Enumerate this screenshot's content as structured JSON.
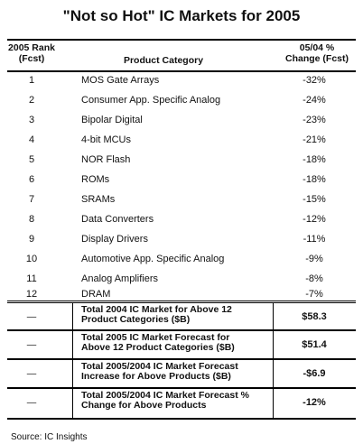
{
  "title": "\"Not so Hot\" IC Markets for 2005",
  "header": {
    "rank_line1": "2005 Rank",
    "rank_line2": "(Fcst)",
    "category": "Product Category",
    "change_line1": "05/04 %",
    "change_line2": "Change (Fcst)"
  },
  "rows": [
    {
      "rank": "1",
      "category": "MOS Gate Arrays",
      "change": "-32%"
    },
    {
      "rank": "2",
      "category": "Consumer App. Specific Analog",
      "change": "-24%"
    },
    {
      "rank": "3",
      "category": "Bipolar Digital",
      "change": "-23%"
    },
    {
      "rank": "4",
      "category": "4-bit MCUs",
      "change": "-21%"
    },
    {
      "rank": "5",
      "category": "NOR Flash",
      "change": "-18%"
    },
    {
      "rank": "6",
      "category": "ROMs",
      "change": "-18%"
    },
    {
      "rank": "7",
      "category": "SRAMs",
      "change": "-15%"
    },
    {
      "rank": "8",
      "category": "Data Converters",
      "change": "-12%"
    },
    {
      "rank": "9",
      "category": "Display Drivers",
      "change": "-11%"
    },
    {
      "rank": "10",
      "category": "Automotive App. Specific Analog",
      "change": "-9%"
    },
    {
      "rank": "11",
      "category": "Analog Amplifiers",
      "change": "-8%"
    },
    {
      "rank": "12",
      "category": "DRAM",
      "change": "-7%"
    }
  ],
  "summary": [
    {
      "dash": "—",
      "line1": "Total 2004 IC Market for Above 12",
      "line2": "Product Categories ($B)",
      "value": "$58.3"
    },
    {
      "dash": "—",
      "line1": "Total 2005 IC Market Forecast for",
      "line2": "Above 12 Product Categories ($B)",
      "value": "$51.4"
    },
    {
      "dash": "—",
      "line1": "Total 2005/2004 IC Market Forecast",
      "line2": "Increase for Above Products ($B)",
      "value": "-$6.9"
    },
    {
      "dash": "—",
      "line1": "Total 2005/2004 IC Market Forecast %",
      "line2": "Change for Above Products",
      "value": "-12%"
    }
  ],
  "source": "Source: IC Insights"
}
